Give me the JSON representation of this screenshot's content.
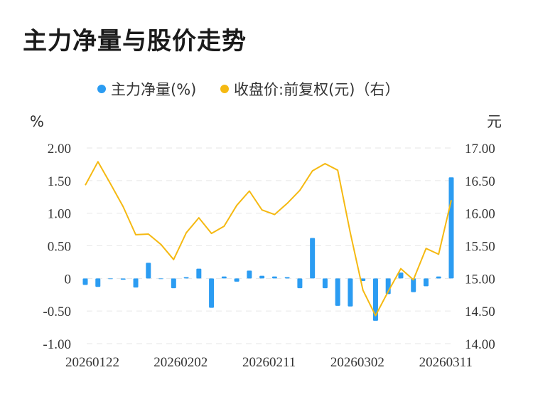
{
  "page_title": "主力净量与股价走势",
  "chart_data": {
    "type": "bar+line",
    "legend": [
      {
        "name": "主力净量(%)",
        "color": "#2b9cf2"
      },
      {
        "name": "收盘价:前复权(元)（右）",
        "color": "#f5b912"
      }
    ],
    "left_unit": "%",
    "right_unit": "元",
    "left_axis": {
      "min": -1.0,
      "max": 2.0,
      "ticks": [
        "2.00",
        "1.50",
        "1.00",
        "0.50",
        "0",
        "-0.50",
        "-1.00"
      ],
      "tick_values": [
        2.0,
        1.5,
        1.0,
        0.5,
        0,
        -0.5,
        -1.0
      ]
    },
    "right_axis": {
      "min": 14.0,
      "max": 17.0,
      "ticks": [
        "17.00",
        "16.50",
        "16.00",
        "15.50",
        "15.00",
        "14.50",
        "14.00"
      ],
      "tick_values": [
        17.0,
        16.5,
        16.0,
        15.5,
        15.0,
        14.5,
        14.0
      ]
    },
    "x_tick_labels": [
      {
        "index": 0,
        "label": "20260122"
      },
      {
        "index": 7,
        "label": "20260202"
      },
      {
        "index": 14,
        "label": "20260211"
      },
      {
        "index": 21,
        "label": "20260302"
      },
      {
        "index": 28,
        "label": "20260311"
      }
    ],
    "series": [
      {
        "name": "主力净量(%)",
        "type": "bar",
        "axis": "left",
        "values": [
          -0.1,
          -0.13,
          -0.01,
          -0.02,
          -0.14,
          0.24,
          -0.01,
          -0.15,
          0.02,
          0.15,
          -0.45,
          0.03,
          -0.05,
          0.12,
          0.04,
          0.03,
          0.02,
          -0.15,
          0.62,
          -0.15,
          -0.42,
          -0.43,
          -0.04,
          -0.65,
          -0.24,
          0.09,
          -0.21,
          -0.12,
          0.03,
          1.55
        ]
      },
      {
        "name": "收盘价:前复权(元)（右）",
        "type": "line",
        "axis": "right",
        "values": [
          16.43,
          16.79,
          16.45,
          16.1,
          15.67,
          15.68,
          15.52,
          15.29,
          15.7,
          15.93,
          15.69,
          15.8,
          16.12,
          16.34,
          16.05,
          15.98,
          16.15,
          16.35,
          16.65,
          16.76,
          16.66,
          15.7,
          14.82,
          14.43,
          14.8,
          15.15,
          14.98,
          15.46,
          15.37,
          16.2
        ]
      }
    ]
  }
}
